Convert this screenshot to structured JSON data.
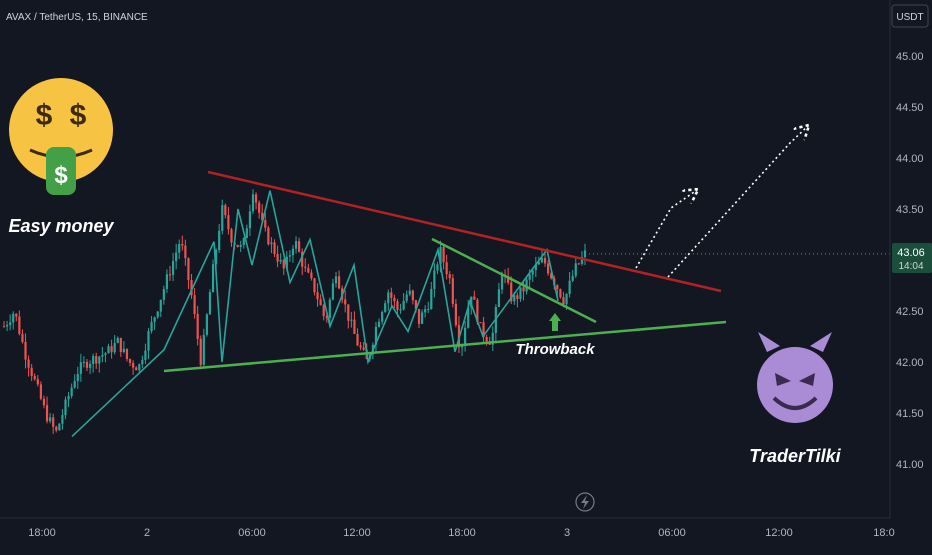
{
  "header": {
    "symbol_label": "AVAX / TetherUS, 15, BINANCE"
  },
  "price_axis": {
    "currency": "USDT",
    "current_price": "43.06",
    "countdown": "14:04"
  },
  "annotations": {
    "left_caption": "Easy money",
    "throwback_label": "Throwback",
    "right_caption": "TraderTilki"
  },
  "icons": {
    "money_face": "money-mouth-face-icon",
    "devil_face": "smiling-devil-face-icon",
    "replay": "lightning-icon",
    "arrow_up": "green-up-arrow-icon"
  },
  "colors": {
    "background": "#131722",
    "up_candle": "#26a69a",
    "down_candle": "#ef5350",
    "resistance_line": "#b22222",
    "support_line": "#4caf50",
    "wave_line": "#26a69a",
    "emoji_yellow": "#f6c342",
    "devil_purple": "#a98bd6"
  },
  "chart_data": {
    "type": "candlestick",
    "title": "AVAX / TetherUS, 15, BINANCE",
    "ylabel": "USDT",
    "ylim": [
      40.5,
      45.5
    ],
    "y_ticks": [
      "45.00",
      "44.50",
      "44.00",
      "43.50",
      "43.00",
      "42.50",
      "42.00",
      "41.50",
      "41.00"
    ],
    "x_ticks": [
      "18:00",
      "2",
      "06:00",
      "12:00",
      "18:00",
      "3",
      "06:00",
      "12:00",
      "18:0"
    ],
    "last_price": 43.06,
    "price_path": [
      42.35,
      42.5,
      42.1,
      41.8,
      41.5,
      41.3,
      41.6,
      41.9,
      42.0,
      42.05,
      42.1,
      42.2,
      42.0,
      41.95,
      42.3,
      42.6,
      42.9,
      43.2,
      42.7,
      42.0,
      42.8,
      43.5,
      43.2,
      43.1,
      43.7,
      43.3,
      43.1,
      42.9,
      43.2,
      42.9,
      42.7,
      42.4,
      42.9,
      42.5,
      42.2,
      42.0,
      42.4,
      42.7,
      42.5,
      42.7,
      42.4,
      42.6,
      43.1,
      42.8,
      42.1,
      42.7,
      42.3,
      42.2,
      42.9,
      42.6,
      42.7,
      42.9,
      43.0,
      42.8,
      42.6,
      42.9,
      43.06
    ],
    "trendlines": [
      {
        "name": "resistance",
        "from": [
          0,
          43.93
        ],
        "to": [
          1,
          42.68
        ]
      },
      {
        "name": "support",
        "from": [
          0,
          41.91
        ],
        "to": [
          1,
          42.38
        ]
      }
    ]
  }
}
